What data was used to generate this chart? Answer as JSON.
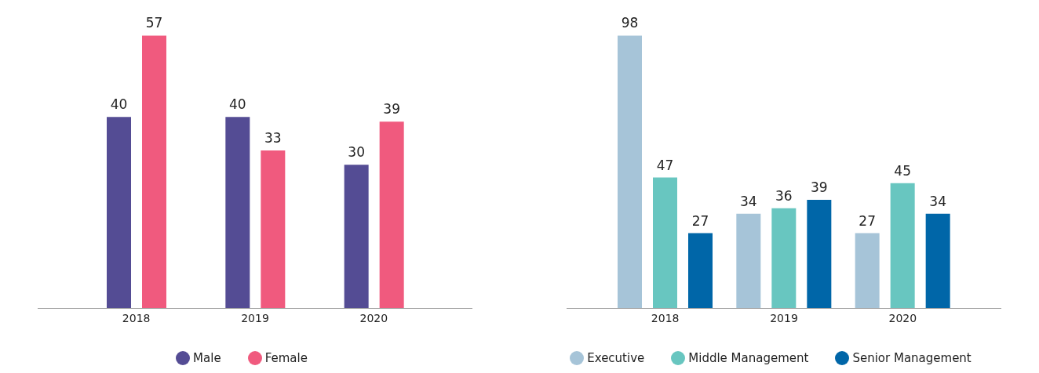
{
  "chart_data": [
    {
      "type": "bar",
      "categories": [
        "2018",
        "2019",
        "2020"
      ],
      "series": [
        {
          "name": "Male",
          "color": "#544c94",
          "values": [
            40,
            40,
            30
          ]
        },
        {
          "name": "Female",
          "color": "#f05a7e",
          "values": [
            57,
            33,
            39
          ]
        }
      ],
      "data_labels": true,
      "legend": "bottom",
      "grid": false
    },
    {
      "type": "bar",
      "categories": [
        "2018",
        "2019",
        "2020"
      ],
      "series": [
        {
          "name": "Executive",
          "color": "#a6c4d8",
          "values": [
            98,
            34,
            27
          ]
        },
        {
          "name": "Middle Management",
          "color": "#68c6c0",
          "values": [
            47,
            36,
            45
          ]
        },
        {
          "name": "Senior Management",
          "color": "#0066a8",
          "values": [
            27,
            39,
            34
          ]
        }
      ],
      "data_labels": true,
      "legend": "bottom",
      "grid": false
    }
  ]
}
